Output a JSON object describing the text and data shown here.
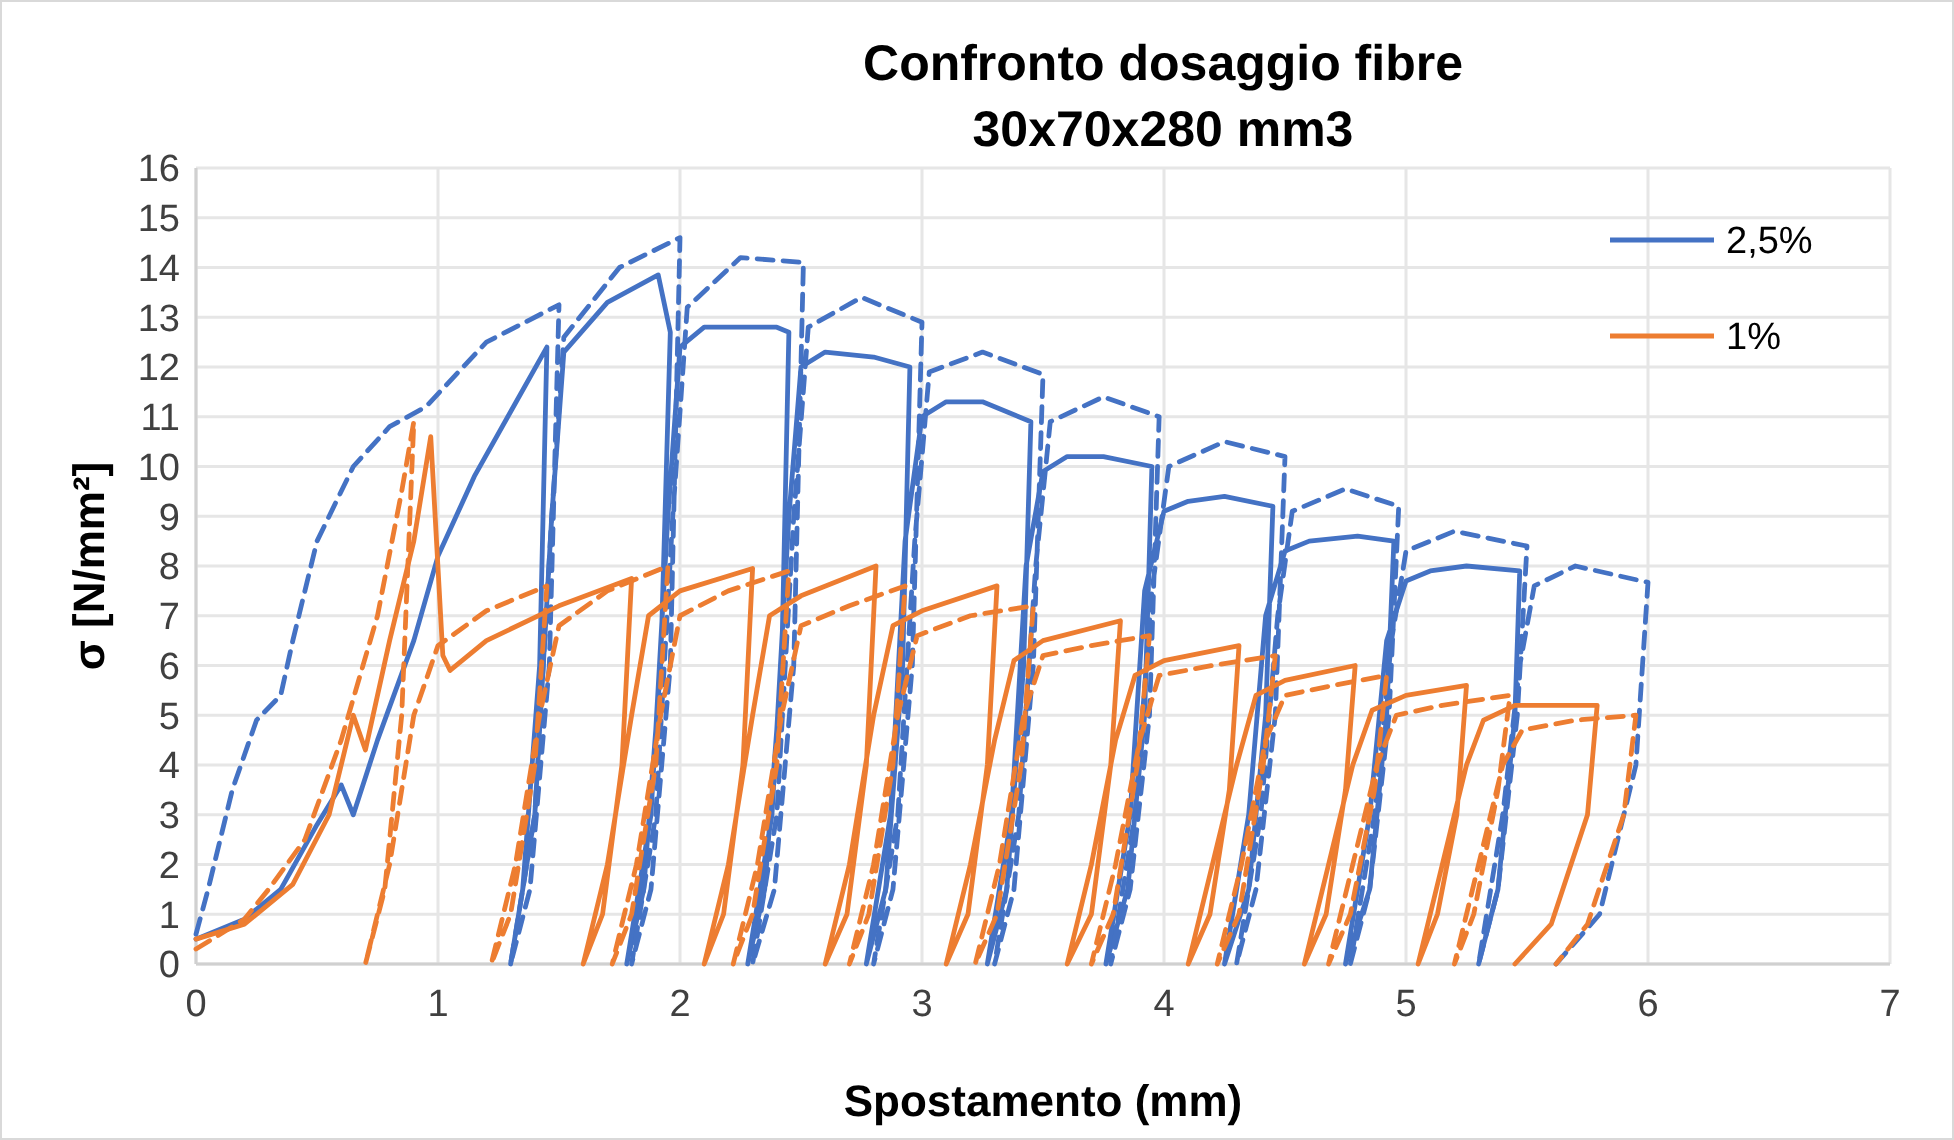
{
  "chart_data": {
    "type": "line",
    "title": "Confronto dosaggio fibre\n30x70x280 mm3",
    "xlabel": "Spostamento (mm)",
    "ylabel": "σ [N/mm²]",
    "xlim": [
      0,
      7
    ],
    "xticks": [
      0,
      1,
      2,
      3,
      4,
      5,
      6,
      7
    ],
    "ylim": [
      0,
      16
    ],
    "yticks": [
      0,
      1,
      2,
      3,
      4,
      5,
      6,
      7,
      8,
      9,
      10,
      11,
      12,
      13,
      14,
      15,
      16
    ],
    "grid": true,
    "legend": "top right",
    "marker": "none",
    "series": [
      {
        "name": "2,5%",
        "color": "#4472c4",
        "line_style": "solid",
        "x": [
          0,
          0.2,
          0.35,
          0.5,
          0.6,
          0.65,
          0.75,
          0.9,
          1.0,
          1.15,
          1.3,
          1.45,
          1.42,
          1.35,
          1.3,
          1.4,
          1.47,
          1.52,
          1.7,
          1.91,
          1.96,
          1.92,
          1.85,
          1.78,
          1.88,
          1.95,
          2.0,
          2.1,
          2.4,
          2.45,
          2.42,
          2.35,
          2.28,
          2.38,
          2.45,
          2.5,
          2.6,
          2.8,
          2.95,
          2.92,
          2.85,
          2.77,
          2.87,
          2.93,
          3.0,
          3.1,
          3.25,
          3.45,
          3.42,
          3.35,
          3.27,
          3.37,
          3.43,
          3.5,
          3.6,
          3.75,
          3.95,
          3.92,
          3.85,
          3.76,
          3.86,
          3.92,
          4.0,
          4.1,
          4.25,
          4.45,
          4.42,
          4.35,
          4.25,
          4.35,
          4.42,
          4.5,
          4.6,
          4.8,
          4.95,
          4.92,
          4.85,
          4.75,
          4.85,
          4.92,
          5.0,
          5.1,
          5.25,
          5.47,
          5.45,
          5.38,
          5.3
        ],
        "values": [
          0.5,
          0.9,
          1.5,
          2.8,
          3.6,
          3,
          4.5,
          6.5,
          8.2,
          9.8,
          11.1,
          12.4,
          6,
          1.5,
          0,
          3,
          9,
          12.3,
          13.3,
          13.85,
          12.7,
          6,
          1.5,
          0,
          3,
          9,
          12.4,
          12.8,
          12.8,
          12.7,
          6,
          1.5,
          0,
          3,
          9,
          12,
          12.3,
          12.2,
          12.0,
          6,
          1.5,
          0,
          3,
          8.5,
          11,
          11.3,
          11.3,
          10.9,
          6,
          1.5,
          0,
          3,
          8,
          9.9,
          10.2,
          10.2,
          10.0,
          5,
          1.5,
          0,
          3,
          7.5,
          9.1,
          9.3,
          9.4,
          9.2,
          5,
          1.5,
          0,
          3,
          7,
          8.3,
          8.5,
          8.6,
          8.5,
          5,
          1.5,
          0,
          3,
          6.5,
          7.7,
          7.9,
          8.0,
          7.9,
          5,
          1.5,
          0
        ]
      },
      {
        "color": "#4472c4",
        "line_style": "dashed",
        "x": [
          0,
          0.05,
          0.15,
          0.25,
          0.35,
          0.4,
          0.5,
          0.65,
          0.8,
          0.95,
          1.2,
          1.5,
          1.46,
          1.38,
          1.3,
          1.4,
          1.47,
          1.52,
          1.75,
          2.0,
          1.96,
          1.88,
          1.8,
          1.9,
          1.97,
          2.03,
          2.25,
          2.51,
          2.47,
          2.39,
          2.3,
          2.4,
          2.47,
          2.53,
          2.75,
          3.0,
          2.96,
          2.88,
          2.8,
          2.9,
          2.97,
          3.03,
          3.25,
          3.5,
          3.46,
          3.38,
          3.3,
          3.4,
          3.47,
          3.53,
          3.75,
          3.98,
          3.94,
          3.86,
          3.78,
          3.88,
          3.95,
          4.02,
          4.25,
          4.5,
          4.46,
          4.38,
          4.3,
          4.4,
          4.47,
          4.53,
          4.75,
          4.97,
          4.93,
          4.85,
          4.77,
          4.87,
          4.94,
          5.0,
          5.2,
          5.5,
          5.46,
          5.38,
          5.3,
          5.4,
          5.47,
          5.53,
          5.7,
          6.0,
          5.95,
          5.8,
          5.62
        ],
        "values": [
          0.6,
          1.5,
          3.5,
          4.9,
          5.4,
          6.5,
          8.5,
          10,
          10.8,
          11.2,
          12.5,
          13.25,
          6,
          1.5,
          0,
          3,
          9,
          12.6,
          14,
          14.6,
          6,
          1.5,
          0,
          3,
          9,
          13.2,
          14.2,
          14.1,
          6,
          1.5,
          0,
          3,
          9,
          12.8,
          13.4,
          12.9,
          6,
          1.5,
          0,
          3,
          8.5,
          11.9,
          12.3,
          11.85,
          6,
          1.5,
          0,
          3,
          8,
          10.9,
          11.4,
          11.0,
          5,
          1.5,
          0,
          3,
          7.5,
          10.0,
          10.5,
          10.2,
          5,
          1.5,
          0,
          3,
          7,
          9.1,
          9.55,
          9.2,
          5,
          1.5,
          0,
          3,
          6.5,
          8.3,
          8.7,
          8.4,
          5,
          1.5,
          0,
          3,
          6,
          7.6,
          8.0,
          7.67,
          4,
          1,
          0
        ]
      },
      {
        "name": "1%",
        "color": "#ed7d31",
        "line_style": "solid",
        "x": [
          0,
          0.2,
          0.4,
          0.55,
          0.65,
          0.7,
          0.8,
          0.9,
          0.97,
          1.02,
          1.05,
          1.2,
          1.5,
          1.8,
          1.76,
          1.68,
          1.6,
          1.7,
          1.8,
          1.87,
          2.0,
          2.3,
          2.26,
          2.18,
          2.1,
          2.2,
          2.3,
          2.37,
          2.5,
          2.81,
          2.77,
          2.69,
          2.6,
          2.7,
          2.8,
          2.88,
          3.0,
          3.31,
          3.27,
          3.19,
          3.1,
          3.2,
          3.3,
          3.38,
          3.5,
          3.82,
          3.78,
          3.7,
          3.6,
          3.7,
          3.8,
          3.88,
          4.0,
          4.31,
          4.27,
          4.19,
          4.1,
          4.2,
          4.3,
          4.38,
          4.5,
          4.79,
          4.75,
          4.67,
          4.58,
          4.68,
          4.78,
          4.86,
          5.0,
          5.25,
          5.21,
          5.13,
          5.05,
          5.15,
          5.25,
          5.32,
          5.45,
          5.79,
          5.75,
          5.6,
          5.45
        ],
        "values": [
          0.5,
          0.8,
          1.6,
          3,
          5,
          4.3,
          6.5,
          8.5,
          10.6,
          6.2,
          5.9,
          6.5,
          7.2,
          7.75,
          4,
          1,
          0,
          2,
          5,
          7,
          7.5,
          7.95,
          4,
          1,
          0,
          2,
          5,
          7,
          7.4,
          8.0,
          4,
          1,
          0,
          2,
          5,
          6.8,
          7.1,
          7.6,
          4,
          1,
          0,
          2,
          4.5,
          6.1,
          6.5,
          6.9,
          4,
          1,
          0,
          2,
          4.5,
          5.8,
          6.1,
          6.4,
          3.5,
          1,
          0,
          2,
          4,
          5.4,
          5.7,
          6.0,
          3.5,
          1,
          0,
          2,
          4,
          5.1,
          5.4,
          5.6,
          3,
          1,
          0,
          2,
          4,
          4.9,
          5.2,
          5.2,
          3,
          0.8,
          0
        ]
      },
      {
        "color": "#ed7d31",
        "line_style": "dashed",
        "x": [
          0,
          0.2,
          0.3,
          0.45,
          0.6,
          0.75,
          0.85,
          0.9,
          0.85,
          0.78,
          0.7,
          0.8,
          0.9,
          1.0,
          1.2,
          1.45,
          1.4,
          1.3,
          1.22,
          1.32,
          1.42,
          1.5,
          1.7,
          1.95,
          1.9,
          1.8,
          1.72,
          1.82,
          1.92,
          2.0,
          2.2,
          2.45,
          2.4,
          2.3,
          2.22,
          2.32,
          2.42,
          2.5,
          2.7,
          2.93,
          2.88,
          2.78,
          2.7,
          2.8,
          2.9,
          2.98,
          3.2,
          3.46,
          3.41,
          3.31,
          3.22,
          3.32,
          3.42,
          3.5,
          3.7,
          3.94,
          3.89,
          3.79,
          3.7,
          3.8,
          3.9,
          3.98,
          4.2,
          4.46,
          4.41,
          4.31,
          4.22,
          4.32,
          4.42,
          4.5,
          4.7,
          4.92,
          4.87,
          4.77,
          4.68,
          4.78,
          4.88,
          4.96,
          5.15,
          5.43,
          5.38,
          5.28,
          5.2,
          5.3,
          5.4,
          5.48,
          5.7,
          5.95,
          5.9,
          5.75,
          5.62
        ],
        "values": [
          0.3,
          0.9,
          1.5,
          2.5,
          4.5,
          7,
          9.5,
          10.9,
          5,
          1.5,
          0,
          2,
          5,
          6.4,
          7.1,
          7.6,
          4,
          1,
          0,
          2,
          5,
          6.8,
          7.5,
          8.0,
          4,
          1,
          0,
          2,
          5,
          7.0,
          7.5,
          7.9,
          4,
          1,
          0,
          2,
          5,
          6.8,
          7.2,
          7.6,
          4,
          1,
          0,
          2,
          5,
          6.6,
          7.0,
          7.2,
          4,
          1,
          0,
          2,
          5,
          6.2,
          6.4,
          6.6,
          4,
          1,
          0,
          2,
          4.5,
          5.8,
          6.0,
          6.2,
          4,
          1,
          0,
          2,
          4.5,
          5.4,
          5.6,
          5.8,
          3.5,
          1,
          0,
          2,
          4,
          5.0,
          5.2,
          5.4,
          3.5,
          1,
          0,
          2,
          4,
          4.7,
          4.9,
          5.0,
          3,
          0.8,
          0
        ]
      }
    ]
  }
}
